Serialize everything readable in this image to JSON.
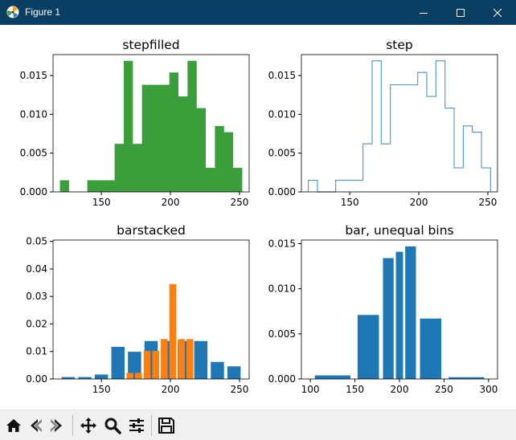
{
  "window": {
    "title": "Figure 1"
  },
  "colors": {
    "green": "#3a9e3a",
    "blue": "#1f77b4",
    "orange": "#ff7f0e",
    "step_line": "#5b9bc8",
    "titlebar": "#0a3e63"
  },
  "toolbar": {
    "items": [
      "home-icon",
      "back-icon",
      "forward-icon",
      "pan-icon",
      "zoom-icon",
      "configure-icon",
      "save-icon"
    ]
  },
  "chart_data": [
    {
      "type": "bar",
      "title": "stepfilled",
      "histtype": "stepfilled",
      "bin_edges": [
        120,
        126.6,
        133.2,
        139.8,
        146.4,
        153,
        159.6,
        166.2,
        172.8,
        179.4,
        186,
        192.6,
        199.2,
        205.8,
        212.4,
        219,
        225.6,
        232.2,
        238.8,
        245.4,
        252
      ],
      "values": [
        0.0015,
        0,
        0,
        0.0015,
        0.0015,
        0.0015,
        0.0062,
        0.0169,
        0.0062,
        0.0138,
        0.0138,
        0.0138,
        0.0154,
        0.0123,
        0.0169,
        0.0108,
        0.0031,
        0.0085,
        0.0077,
        0.0031
      ],
      "xlim": [
        115,
        257
      ],
      "ylim": [
        0,
        0.0177
      ],
      "xticks": [
        "150",
        "200",
        "250"
      ],
      "yticks": [
        "0.000",
        "0.005",
        "0.010",
        "0.015"
      ]
    },
    {
      "type": "line",
      "title": "step",
      "histtype": "step",
      "bin_edges": [
        120,
        126.6,
        133.2,
        139.8,
        146.4,
        153,
        159.6,
        166.2,
        172.8,
        179.4,
        186,
        192.6,
        199.2,
        205.8,
        212.4,
        219,
        225.6,
        232.2,
        238.8,
        245.4,
        252
      ],
      "values": [
        0.0015,
        0,
        0,
        0.0015,
        0.0015,
        0.0015,
        0.0062,
        0.0169,
        0.0062,
        0.0138,
        0.0138,
        0.0138,
        0.0154,
        0.0123,
        0.0169,
        0.0108,
        0.0031,
        0.0085,
        0.0077,
        0.0031
      ],
      "xlim": [
        115,
        257
      ],
      "ylim": [
        0,
        0.0177
      ],
      "xticks": [
        "150",
        "200",
        "250"
      ],
      "yticks": [
        "0.000",
        "0.005",
        "0.010",
        "0.015"
      ]
    },
    {
      "type": "bar",
      "title": "barstacked",
      "histtype": "barstacked",
      "series": [
        {
          "bin_edges": [
            120,
            132,
            144,
            156,
            168,
            180,
            192,
            204,
            216,
            228,
            240,
            252
          ],
          "values": [
            0.0007,
            0.0007,
            0.0016,
            0.0117,
            0.0099,
            0.0138,
            0.0138,
            0.0138,
            0.0138,
            0.0062,
            0.0046
          ]
        },
        {
          "bin_edges": [
            167.6,
            173.8,
            180,
            186.2,
            192.4,
            198.6,
            204.8,
            211,
            217.2
          ],
          "values": [
            0.0022,
            0.0022,
            0.0102,
            0.0102,
            0.0145,
            0.0345,
            0.0145,
            0.0145
          ]
        }
      ],
      "xlim": [
        115,
        257
      ],
      "ylim": [
        0,
        0.0505
      ],
      "xticks": [
        "150",
        "200",
        "250"
      ],
      "yticks": [
        "0.00",
        "0.01",
        "0.02",
        "0.03",
        "0.04",
        "0.05"
      ]
    },
    {
      "type": "bar",
      "title": "bar, unequal bins",
      "bin_edges": [
        100,
        150,
        180,
        195,
        205,
        220,
        250,
        300
      ],
      "values": [
        0.0004,
        0.0071,
        0.0134,
        0.0141,
        0.0147,
        0.0067,
        0.0002
      ],
      "xlim": [
        90,
        310
      ],
      "ylim": [
        0,
        0.0154
      ],
      "xticks": [
        "100",
        "150",
        "200",
        "250",
        "300"
      ],
      "yticks": [
        "0.000",
        "0.005",
        "0.010",
        "0.015"
      ]
    }
  ]
}
